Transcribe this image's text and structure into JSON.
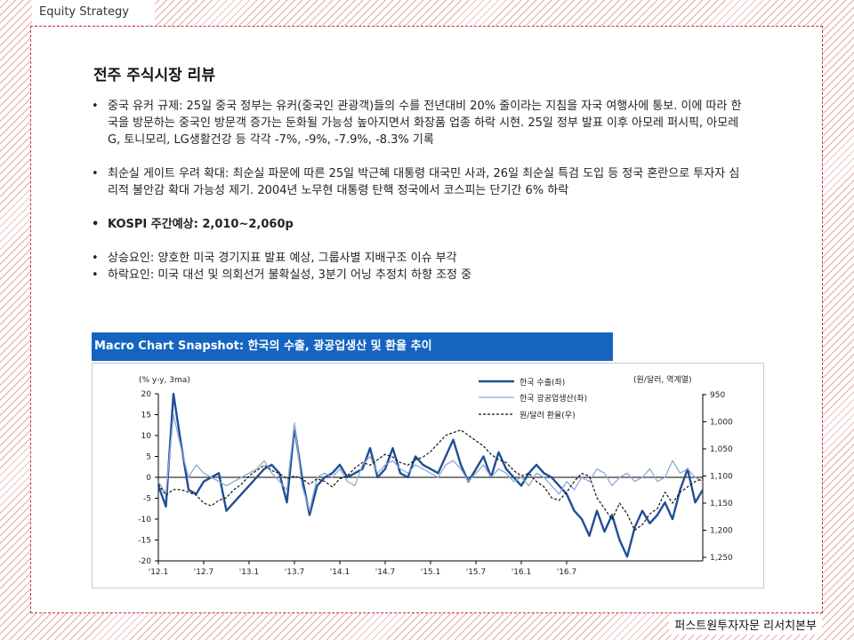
{
  "header": {
    "section_label": "Equity Strategy"
  },
  "footer": {
    "publisher": "퍼스트원투자자문 리서치본부"
  },
  "main": {
    "title": "전주 주식시장 리뷰",
    "bullets": [
      "중국 유커 규제: 25일 중국 정부는 유커(중국인 관광객)들의 수를 전년대비 20% 줄이라는 지침을 자국 여행사에 통보. 이에 따라 한국을 방문하는 중국인 방문객 증가는 둔화될 가능성 높아지면서 화장품 업종 하락 시현. 25일 정부 발표 이후 아모레 퍼시픽, 아모레 G, 토니모리, LG생활건강 등 각각 -7%, -9%, -7.9%, -8.3% 기록",
      "최순실 게이트 우려 확대: 최순실 파문에 따른 25일 박근혜 대통령 대국민 사과, 26일 최순실 특검 도입 등 정국 혼란으로 투자자 심리적 불안감 확대 가능성 제기. 2004년 노무현 대통령 탄핵 정국에서 코스피는 단기간 6% 하락",
      "KOSPI 주간예상: 2,010~2,060p",
      "상승요인: 양호한 미국 경기지표 발표 예상, 그룹사별 지배구조 이슈 부각",
      "하락요인: 미국 대선 및 의회선거 불확실성, 3분기 어닝 추정치 하향 조정 중"
    ]
  },
  "chart_header": "Macro Chart Snapshot:  한국의 수출, 광공업생산 및 환율 추이",
  "chart_data": {
    "type": "line",
    "left_axis_label": "(% y-y, 3ma)",
    "right_axis_label": "(원/달러, 역계열)",
    "left_ticks": [
      20,
      15,
      10,
      5,
      0,
      -5,
      -10,
      -15,
      -20
    ],
    "right_ticks": [
      "950",
      "1,000",
      "1,050",
      "1,100",
      "1,150",
      "1,200",
      "1,250"
    ],
    "x_ticks": [
      "'12.1",
      "'12.7",
      "'13.1",
      "'13.7",
      "'14.1",
      "'14.7",
      "'15.1",
      "'15.7",
      "'16.1",
      "'16.7"
    ],
    "ylim": [
      -20,
      20
    ],
    "y2lim": [
      1250,
      950
    ],
    "y2_inverted": true,
    "colors": {
      "export": "#1f4e96",
      "production": "#8fa9d4",
      "fx": "#111111"
    },
    "series": [
      {
        "name": "한국 수출(좌)",
        "axis": "left",
        "values": [
          -2,
          -7,
          20,
          8,
          -3,
          -4,
          -1,
          0,
          1,
          -8,
          -6,
          -4,
          -2,
          0,
          2,
          3,
          1,
          -6,
          12,
          0,
          -9,
          -2,
          0,
          1,
          3,
          0,
          1,
          2,
          7,
          0,
          2,
          7,
          1,
          0,
          5,
          3,
          2,
          1,
          5,
          9,
          3,
          -1,
          2,
          5,
          0,
          6,
          2,
          0,
          -2,
          1,
          3,
          1,
          0,
          -2,
          -4,
          -8,
          -10,
          -14,
          -8,
          -13,
          -9,
          -15,
          -19,
          -12,
          -8,
          -11,
          -9,
          -6,
          -10,
          -3,
          2,
          -6,
          -3
        ]
      },
      {
        "name": "한국 광공업생산(좌)",
        "axis": "left",
        "values": [
          -1,
          -4,
          15,
          7,
          0,
          3,
          1,
          0,
          -1,
          -2,
          -1,
          0,
          1,
          2,
          4,
          1,
          -1,
          -3,
          13,
          -2,
          -8,
          0,
          1,
          0,
          2,
          -1,
          -2,
          3,
          5,
          1,
          3,
          4,
          2,
          1,
          3,
          2,
          1,
          0,
          3,
          4,
          2,
          -1,
          1,
          3,
          0,
          2,
          1,
          -1,
          0,
          -2,
          1,
          0,
          -2,
          -4,
          -1,
          -3,
          0,
          -1,
          2,
          1,
          -2,
          0,
          1,
          -1,
          0,
          2,
          -1,
          0,
          4,
          1,
          2,
          0,
          -1
        ]
      },
      {
        "name": "원/달러 환율(우)",
        "axis": "right",
        "values": [
          1115,
          1135,
          1125,
          1125,
          1130,
          1135,
          1150,
          1155,
          1145,
          1140,
          1125,
          1115,
          1100,
          1090,
          1080,
          1090,
          1095,
          1105,
          1100,
          1105,
          1115,
          1105,
          1110,
          1120,
          1105,
          1100,
          1085,
          1075,
          1080,
          1070,
          1060,
          1065,
          1075,
          1080,
          1070,
          1065,
          1055,
          1040,
          1025,
          1020,
          1015,
          1025,
          1035,
          1045,
          1060,
          1070,
          1075,
          1090,
          1100,
          1095,
          1110,
          1120,
          1140,
          1145,
          1130,
          1110,
          1095,
          1100,
          1140,
          1160,
          1180,
          1150,
          1170,
          1200,
          1190,
          1170,
          1160,
          1130,
          1150,
          1130,
          1120,
          1110,
          1105
        ]
      }
    ]
  }
}
